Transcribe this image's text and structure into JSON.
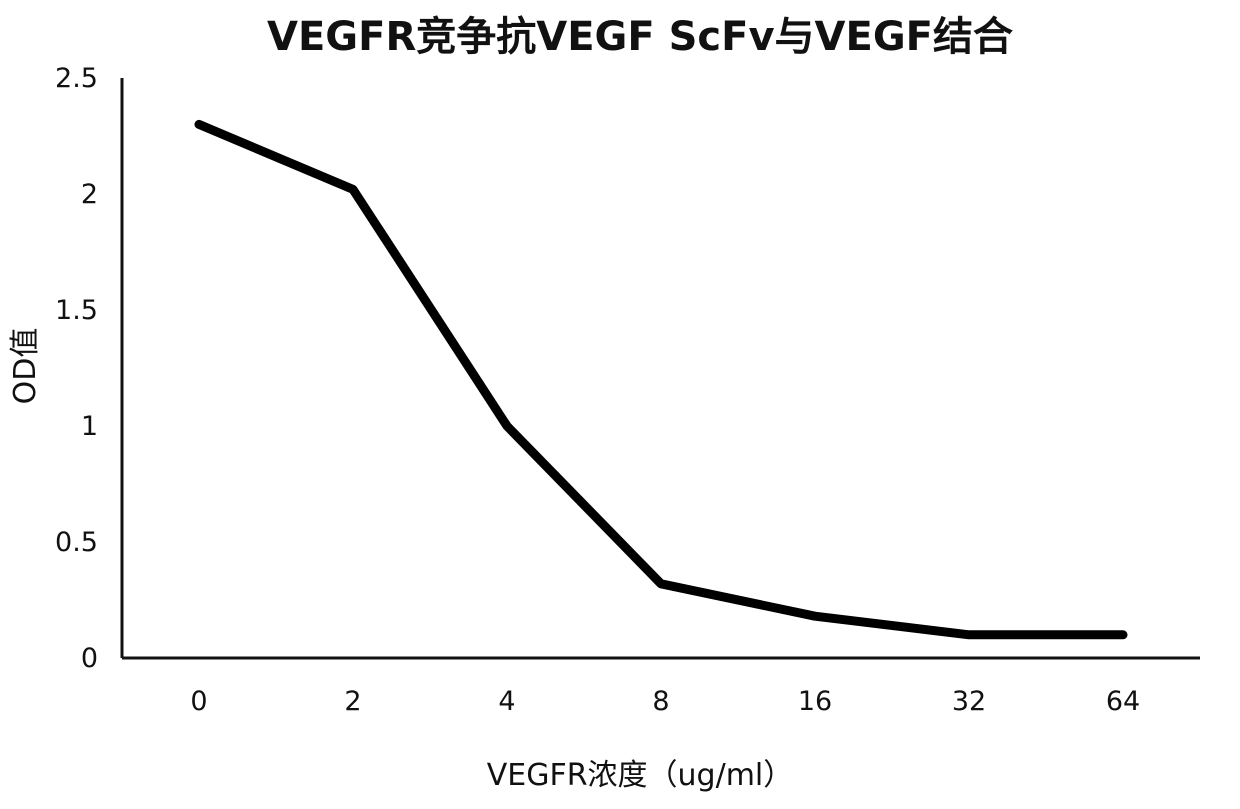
{
  "chart_data": {
    "type": "line",
    "title": "VEGFR竞争抗VEGF ScFv与VEGF结合",
    "xlabel": "VEGFR浓度（ug/ml）",
    "ylabel": "OD值",
    "categories": [
      "0",
      "2",
      "4",
      "8",
      "16",
      "32",
      "64"
    ],
    "series": [
      {
        "values": [
          2.3,
          2.02,
          1.0,
          0.32,
          0.18,
          0.1,
          0.1
        ]
      }
    ],
    "ylim": [
      0,
      2.5
    ],
    "yticks": [
      "0",
      "0.5",
      "1",
      "1.5",
      "2",
      "2.5"
    ],
    "grid": false,
    "legend": "none",
    "line_color": "#000000"
  }
}
